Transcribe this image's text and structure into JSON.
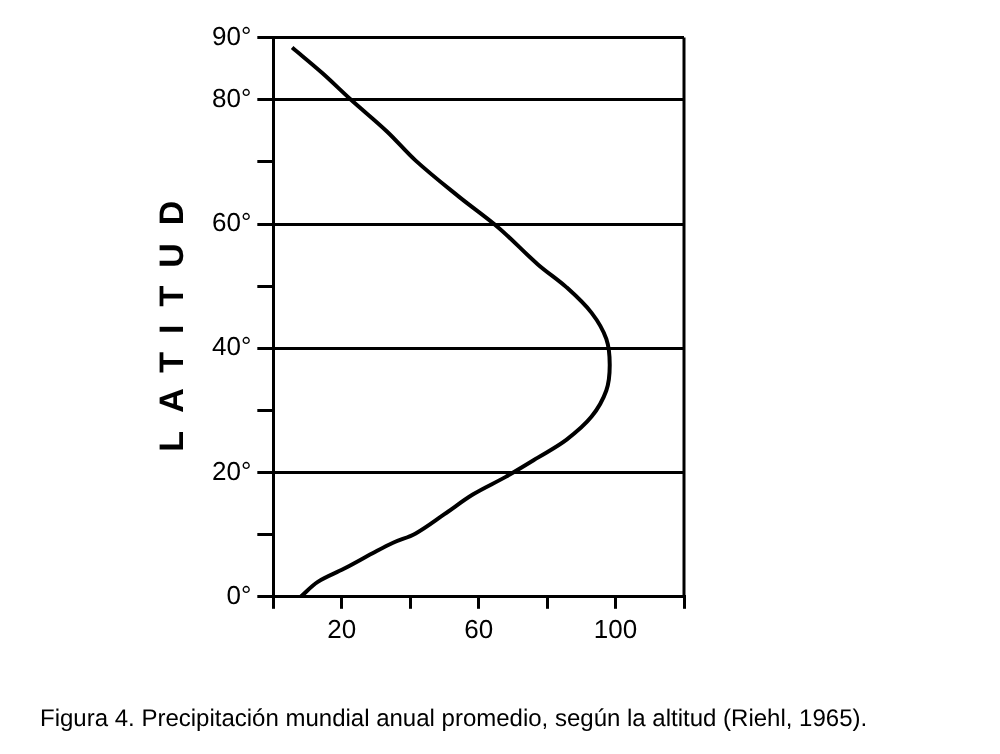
{
  "chart_data": {
    "type": "line",
    "ylabel": "LATITUD",
    "annotations": [
      "Figura 4. Precipitación mundial anual promedio, según la altitud (Riehl, 1965)."
    ],
    "series": [
      {
        "color": "#000000",
        "x": [
          8,
          13,
          20.6,
          29,
          35,
          41.6,
          50,
          58.4,
          67.9,
          77.3,
          85.7,
          93,
          97.3,
          98.3,
          97.3,
          93,
          85.7,
          77.3,
          65.8,
          54.2,
          41.6,
          33.2,
          22.7,
          14.3,
          5.5
        ],
        "values": [
          0,
          2.4,
          4.5,
          7,
          8.7,
          10.2,
          13.3,
          16.5,
          19.3,
          22.4,
          25.3,
          29,
          33.2,
          37.3,
          41.5,
          45.7,
          49.8,
          53.5,
          59.4,
          64.4,
          70.2,
          74.9,
          80,
          84.3,
          88.4
        ]
      }
    ],
    "xlim": [
      0,
      120
    ],
    "xticks": [
      {
        "value": 0,
        "label": null
      },
      20,
      {
        "value": 40,
        "label": null
      },
      60,
      {
        "value": 80,
        "label": null
      },
      100,
      {
        "value": 120,
        "label": null
      }
    ],
    "ylim": [
      0,
      90
    ],
    "yticks": [
      {
        "value": 0,
        "label": "0°"
      },
      {
        "value": 10,
        "label": null
      },
      {
        "value": 20,
        "label": "20°"
      },
      {
        "value": 30,
        "label": null
      },
      {
        "value": 40,
        "label": "40°"
      },
      {
        "value": 50,
        "label": null
      },
      {
        "value": 60,
        "label": "60°"
      },
      {
        "value": 70,
        "label": null
      },
      {
        "value": 80,
        "label": "80°"
      },
      {
        "value": 90,
        "label": "90°"
      }
    ],
    "grid": "y",
    "marker": "none",
    "line_style": "solid"
  }
}
